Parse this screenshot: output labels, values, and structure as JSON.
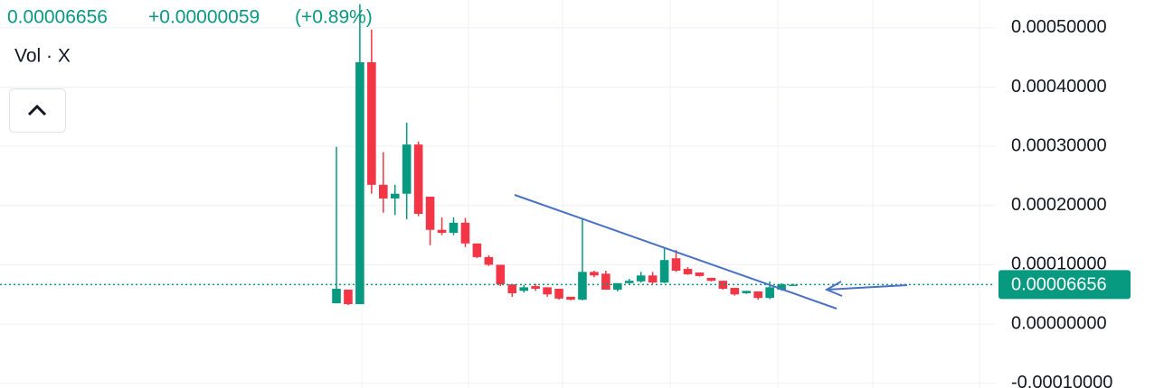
{
  "chart_data": {
    "type": "candlestick",
    "header": {
      "price": "0.00006656",
      "change": "+0.00000059",
      "change_pct": "(+0.89%)"
    },
    "volume_label": "Vol · X",
    "up_color": "#089981",
    "down_color": "#f23645",
    "ylim": [
      -0.000108,
      0.000547
    ],
    "yticks": [
      {
        "value": 0.0005,
        "label": "0.00050000"
      },
      {
        "value": 0.0004,
        "label": "0.00040000"
      },
      {
        "value": 0.0003,
        "label": "0.00030000"
      },
      {
        "value": 0.0002,
        "label": "0.00020000"
      },
      {
        "value": 0.0001,
        "label": "0.00010000"
      },
      {
        "value": 0,
        "label": "0.00000000"
      },
      {
        "value": -0.0001,
        "label": "-0.00010000"
      }
    ],
    "grid": true,
    "last_price": {
      "value": 6.656e-05,
      "label": "0.00006656"
    },
    "open": [
      3.5e-05,
      5.8e-05,
      3.35e-05,
      0.000442,
      0.000235,
      0.000212,
      0.00022,
      0.000303,
      0.000215,
      0.000159,
      0.000154,
      0.000171,
      0.000136,
      0.000113,
      0.0001,
      6.7e-05,
      5.6e-05,
      6.4e-05,
      6.2e-05,
      5.95e-05,
      4.6e-05,
      4.1e-05,
      8.8e-05,
      8.5e-05,
      5.8e-05,
      6.9e-05,
      7.2e-05,
      8.2e-05,
      7e-05,
      0.000111,
      9.3e-05,
      8.7e-05,
      7.8e-05,
      7.3e-05,
      6.1e-05,
      5.2e-05,
      5.5e-05,
      4.4e-05,
      5.8e-05,
      6.6e-05
    ],
    "high": [
      0.000299,
      5.8e-05,
      0.00054,
      0.000497,
      0.00029,
      0.000235,
      0.00034,
      0.000308,
      0.000215,
      0.00018,
      0.00018,
      0.000179,
      0.000136,
      0.000116,
      0.0001,
      6.7e-05,
      6.6e-05,
      6.8e-05,
      6.2e-05,
      5.95e-05,
      4.6e-05,
      0.000177,
      9e-05,
      9e-05,
      6.9e-05,
      7.6e-05,
      8.8e-05,
      8.8e-05,
      0.000128,
      0.000125,
      9.6e-05,
      8.7e-05,
      7.8e-05,
      7.3e-05,
      6.1e-05,
      5.6e-05,
      5.5e-05,
      7.2e-05,
      6.9e-05,
      6.8e-05
    ],
    "low": [
      3.5e-05,
      3.2e-05,
      3.35e-05,
      0.00022,
      0.000188,
      0.000184,
      0.000177,
      0.000182,
      0.000133,
      0.00015,
      0.00015,
      0.00013,
      0.000111,
      9.8e-05,
      6.4e-05,
      4.6e-05,
      5.3e-05,
      5.6e-05,
      4.6e-05,
      4.1e-05,
      4e-05,
      4e-05,
      7.9e-05,
      5.8e-05,
      5.5e-05,
      6.8e-05,
      7e-05,
      6.8e-05,
      6.9e-05,
      8.8e-05,
      8.3e-05,
      8e-05,
      7.2e-05,
      5.8e-05,
      4.8e-05,
      5.1e-05,
      4.1e-05,
      4.2e-05,
      5.6e-05,
      6.5e-05
    ],
    "close": [
      5.95e-05,
      3.35e-05,
      0.000442,
      0.000235,
      0.000212,
      0.00022,
      0.000303,
      0.000186,
      0.000159,
      0.000154,
      0.000171,
      0.000136,
      0.000113,
      0.0001,
      6.7e-05,
      5.2e-05,
      6.2e-05,
      5.95e-05,
      5e-05,
      4.3e-05,
      4.1e-05,
      8.8e-05,
      8.2e-05,
      5.8e-05,
      6.9e-05,
      7.3e-05,
      8.2e-05,
      7e-05,
      0.000108,
      9e-05,
      8.4e-05,
      8.1e-05,
      7.3e-05,
      5.95e-05,
      5e-05,
      5.6e-05,
      4.4e-05,
      6.2e-05,
      6.7e-05,
      6.656e-05
    ]
  }
}
